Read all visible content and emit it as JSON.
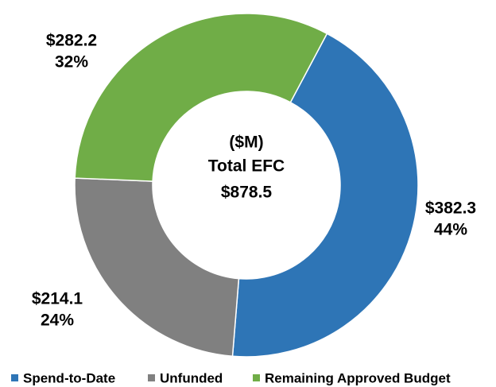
{
  "chart_data": {
    "type": "donut",
    "center_text": [
      "($M)",
      "Total EFC",
      "$878.5"
    ],
    "categories": [
      "Spend-to-Date",
      "Unfunded",
      "Remaining Approved Budget"
    ],
    "values": [
      382.3,
      214.1,
      282.2
    ],
    "value_labels": [
      "$382.3",
      "$214.1",
      "$282.2"
    ],
    "percent_labels": [
      "44%",
      "24%",
      "32%"
    ],
    "colors": [
      "#2e75b6",
      "#808080",
      "#70ad47"
    ],
    "legend": "bottom"
  }
}
